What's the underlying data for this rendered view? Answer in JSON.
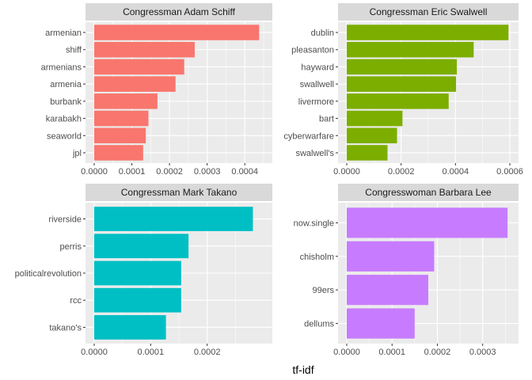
{
  "chart_data": {
    "type": "bar",
    "orientation": "horizontal",
    "xlabel": "tf-idf",
    "ylabel": "",
    "grid": true,
    "legend": "none",
    "facets": [
      {
        "title": "Congressman Adam Schiff",
        "color": "#F8766D",
        "xlim": [
          0,
          0.00045
        ],
        "ticks": [
          0,
          0.0001,
          0.0002,
          0.0003,
          0.0004
        ],
        "tick_labels": [
          "0.0000",
          "0.0001",
          "0.0002",
          "0.0003",
          "0.0004"
        ],
        "categories": [
          "armenian",
          "shiff",
          "armenians",
          "armenia",
          "burbank",
          "karabakh",
          "seaworld",
          "jpl"
        ],
        "values": [
          0.000438,
          0.000267,
          0.000239,
          0.000216,
          0.000168,
          0.000144,
          0.000137,
          0.00013
        ]
      },
      {
        "title": "Congressman Eric Swalwell",
        "color": "#7CAE00",
        "xlim": [
          0,
          0.0006
        ],
        "ticks": [
          0,
          0.0002,
          0.0004,
          0.0006
        ],
        "tick_labels": [
          "0.0000",
          "0.0002",
          "0.0004",
          "0.0006"
        ],
        "categories": [
          "dublin",
          "pleasanton",
          "hayward",
          "swallwell",
          "livermore",
          "bart",
          "cyberwarfare",
          "swalwell's"
        ],
        "values": [
          0.000595,
          0.000467,
          0.000405,
          0.000402,
          0.000375,
          0.000205,
          0.000185,
          0.00015
        ]
      },
      {
        "title": "Congressman Mark Takano",
        "color": "#00BFC4",
        "xlim": [
          0,
          0.0003
        ],
        "ticks": [
          0,
          0.0001,
          0.0002
        ],
        "tick_labels": [
          "0.0000",
          "0.0001",
          "0.0002"
        ],
        "categories": [
          "riverside",
          "perris",
          "politicalrevolution",
          "rcc",
          "takano's"
        ],
        "values": [
          0.000281,
          0.000167,
          0.000154,
          0.000154,
          0.000127
        ]
      },
      {
        "title": "Congresswoman Barbara Lee",
        "color": "#C77CFF",
        "xlim": [
          0,
          0.00036
        ],
        "ticks": [
          0,
          0.0001,
          0.0002,
          0.0003
        ],
        "tick_labels": [
          "0.0000",
          "0.0001",
          "0.0002",
          "0.0003"
        ],
        "categories": [
          "now.single",
          "chisholm",
          "99ers",
          "dellums"
        ],
        "values": [
          0.000355,
          0.000193,
          0.00018,
          0.00015
        ]
      }
    ]
  }
}
